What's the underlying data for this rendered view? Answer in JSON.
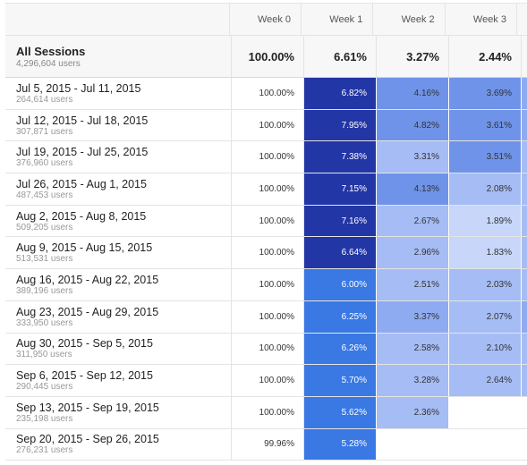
{
  "headers": [
    "",
    "Week 0",
    "Week 1",
    "Week 2",
    "Week 3"
  ],
  "total": {
    "label": "All Sessions",
    "users": "4,296,604 users",
    "values": [
      "100.00%",
      "6.61%",
      "3.27%",
      "2.44%"
    ]
  },
  "rows": [
    {
      "label": "Jul 5, 2015 - Jul 11, 2015",
      "users": "264,614 users",
      "w0": "100.00%",
      "w1": "6.82%",
      "w2": "4.16%",
      "w3": "3.69%",
      "c1": "#2236a6",
      "c2": "#6f93e8",
      "c3": "#6f93e8",
      "c4": "#8eaaf0"
    },
    {
      "label": "Jul 12, 2015 - Jul 18, 2015",
      "users": "307,871 users",
      "w0": "100.00%",
      "w1": "7.95%",
      "w2": "4.82%",
      "w3": "3.61%",
      "c1": "#2236a6",
      "c2": "#6f93e8",
      "c3": "#6f93e8",
      "c4": "#8eaaf0"
    },
    {
      "label": "Jul 19, 2015 - Jul 25, 2015",
      "users": "376,960 users",
      "w0": "100.00%",
      "w1": "7.38%",
      "w2": "3.31%",
      "w3": "3.51%",
      "c1": "#2236a6",
      "c2": "#a5bcf4",
      "c3": "#6f93e8",
      "c4": "#a5bcf4"
    },
    {
      "label": "Jul 26, 2015 - Aug 1, 2015",
      "users": "487,453 users",
      "w0": "100.00%",
      "w1": "7.15%",
      "w2": "4.13%",
      "w3": "2.08%",
      "c1": "#2236a6",
      "c2": "#6f93e8",
      "c3": "#a5bcf4",
      "c4": "#a5bcf4"
    },
    {
      "label": "Aug 2, 2015 - Aug 8, 2015",
      "users": "509,205 users",
      "w0": "100.00%",
      "w1": "7.16%",
      "w2": "2.67%",
      "w3": "1.89%",
      "c1": "#2236a6",
      "c2": "#a5bcf4",
      "c3": "#c7d6f9",
      "c4": "#a5bcf4"
    },
    {
      "label": "Aug 9, 2015 - Aug 15, 2015",
      "users": "513,531 users",
      "w0": "100.00%",
      "w1": "6.64%",
      "w2": "2.96%",
      "w3": "1.83%",
      "c1": "#2236a6",
      "c2": "#a5bcf4",
      "c3": "#c7d6f9",
      "c4": "#a5bcf4"
    },
    {
      "label": "Aug 16, 2015 - Aug 22, 2015",
      "users": "389,196 users",
      "w0": "100.00%",
      "w1": "6.00%",
      "w2": "2.51%",
      "w3": "2.03%",
      "c1": "#3a78e3",
      "c2": "#a5bcf4",
      "c3": "#a5bcf4",
      "c4": "#a5bcf4"
    },
    {
      "label": "Aug 23, 2015 - Aug 29, 2015",
      "users": "333,950 users",
      "w0": "100.00%",
      "w1": "6.25%",
      "w2": "3.37%",
      "w3": "2.07%",
      "c1": "#3a78e3",
      "c2": "#8eaaf0",
      "c3": "#a5bcf4",
      "c4": "#8eaaf0"
    },
    {
      "label": "Aug 30, 2015 - Sep 5, 2015",
      "users": "311,950 users",
      "w0": "100.00%",
      "w1": "6.26%",
      "w2": "2.58%",
      "w3": "2.10%",
      "c1": "#3a78e3",
      "c2": "#a5bcf4",
      "c3": "#a5bcf4",
      "c4": "#a5bcf4"
    },
    {
      "label": "Sep 6, 2015 - Sep 12, 2015",
      "users": "290,445 users",
      "w0": "100.00%",
      "w1": "5.70%",
      "w2": "3.28%",
      "w3": "2.64%",
      "c1": "#3a78e3",
      "c2": "#a5bcf4",
      "c3": "#a5bcf4",
      "c4": "#a5bcf4"
    },
    {
      "label": "Sep 13, 2015 - Sep 19, 2015",
      "users": "235,198 users",
      "w0": "100.00%",
      "w1": "5.62%",
      "w2": "2.36%",
      "w3": "",
      "c1": "#3a78e3",
      "c2": "#a5bcf4",
      "c3": "#ffffff",
      "c4": "#ffffff"
    },
    {
      "label": "Sep 20, 2015 - Sep 26, 2015",
      "users": "276,231 users",
      "w0": "99.96%",
      "w1": "5.28%",
      "w2": "",
      "w3": "",
      "c1": "#3a78e3",
      "c2": "#ffffff",
      "c3": "#ffffff",
      "c4": "#ffffff"
    }
  ]
}
